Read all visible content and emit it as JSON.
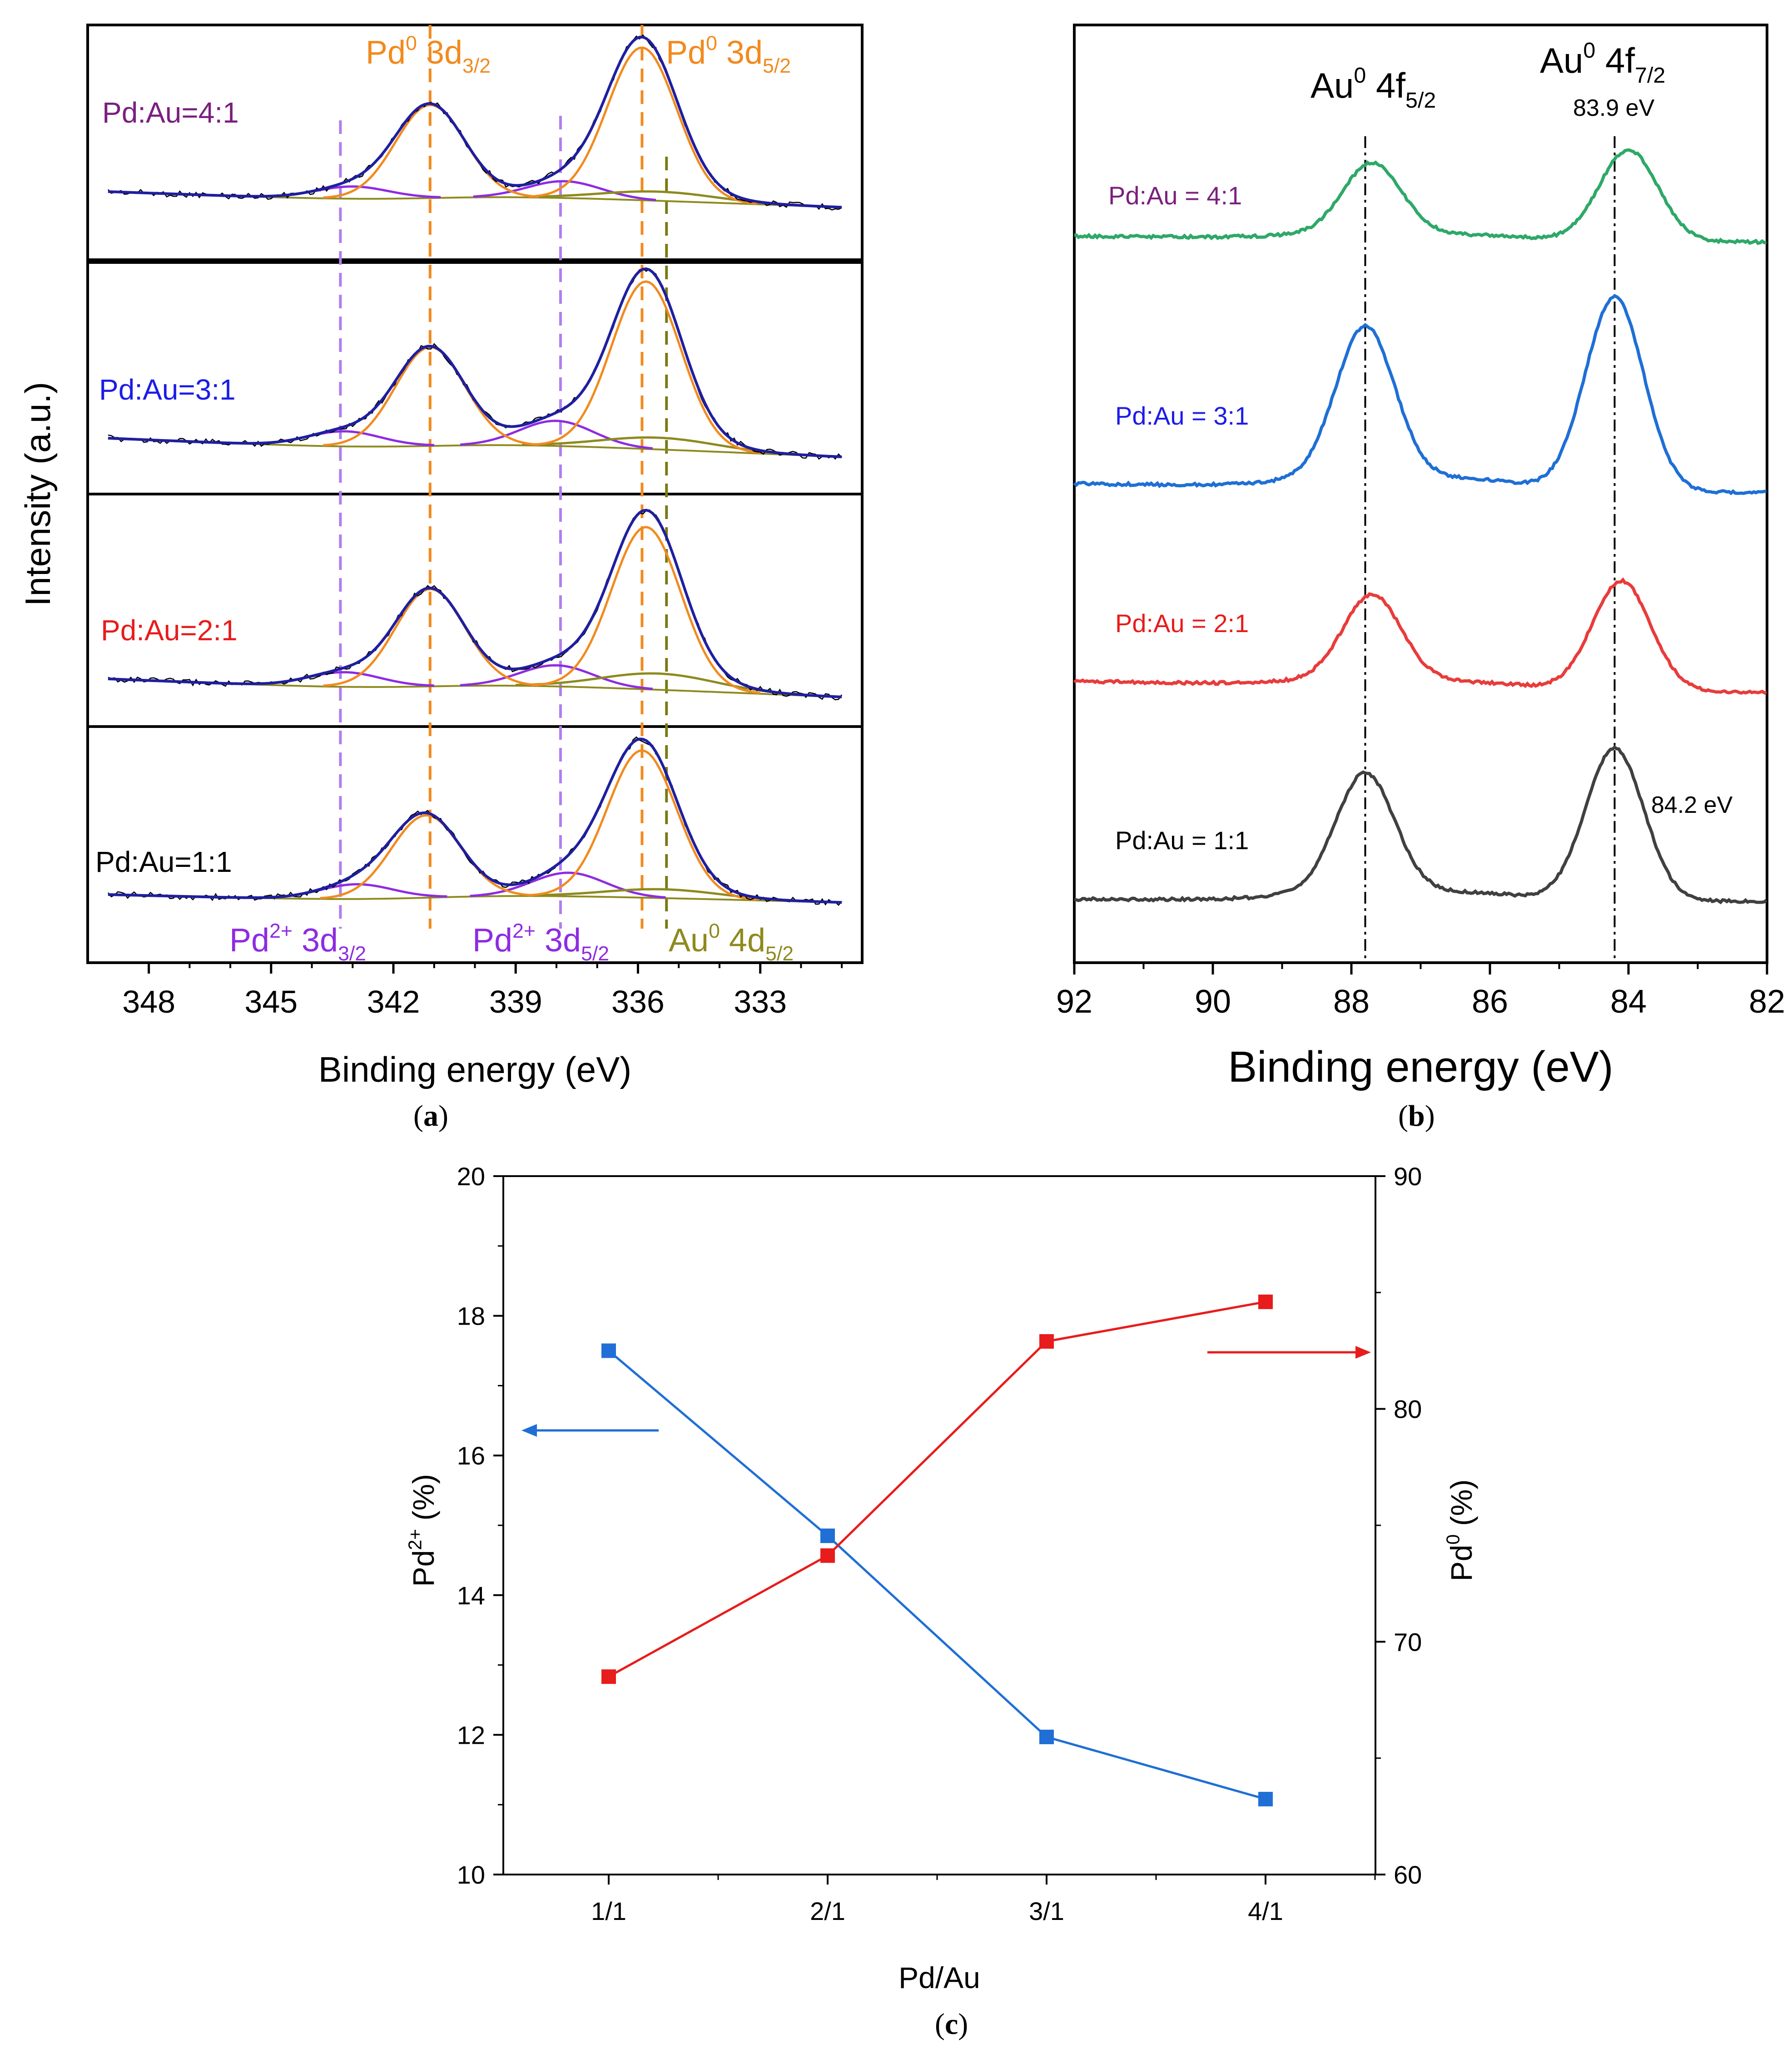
{
  "chart_data": [
    {
      "panel": "a",
      "type": "line",
      "caption_label": "a",
      "xlabel": "Binding energy (eV)",
      "ylabel": "Intensity (a.u.)",
      "xlim": [
        349.5,
        330.5
      ],
      "x_ticks": [
        348,
        345,
        342,
        339,
        336,
        333
      ],
      "x_tick_labels": [
        "348",
        "345",
        "342",
        "339",
        "336",
        "333"
      ],
      "colors": {
        "fit": "#1f1fa0",
        "pd0": "#f28a1e",
        "pd2": "#8e2be2",
        "au": "#8e8a1e",
        "raw": "#000000"
      },
      "reference_lines": [
        {
          "x": 343.3,
          "color": "#b07ef0",
          "label_sup": "2+",
          "label_base": "Pd",
          "label_rest": " 3d",
          "label_sub": "3/2"
        },
        {
          "x": 341.1,
          "color": "#f28a1e",
          "label_sup": "0",
          "label_base": "Pd",
          "label_rest": " 3d",
          "label_sub": "3/2"
        },
        {
          "x": 337.9,
          "color": "#b07ef0",
          "label_sup": "2+",
          "label_base": "Pd",
          "label_rest": " 3d",
          "label_sub": "5/2"
        },
        {
          "x": 335.9,
          "color": "#f28a1e",
          "label_sup": "0",
          "label_base": "Pd",
          "label_rest": " 3d",
          "label_sub": "5/2"
        },
        {
          "x": 335.3,
          "color": "#7a7a14",
          "label_sup": "0",
          "label_base": "Au",
          "label_rest": " 4d",
          "label_sub": "5/2"
        }
      ],
      "series": [
        {
          "name": "Pd:Au=4:1",
          "color": "#7b1f7e",
          "pd0_3d52": {
            "center": 335.9,
            "height": 1.0
          },
          "pd0_3d32": {
            "center": 341.1,
            "height": 0.61
          },
          "pd2_3d52": {
            "center": 337.8,
            "height": 0.11
          },
          "pd2_3d32": {
            "center": 343.0,
            "height": 0.08
          },
          "au_4d52": {
            "center": 335.5,
            "height": 0.06
          }
        },
        {
          "name": "Pd:Au=3:1",
          "color": "#1c1ce8",
          "pd0_3d52": {
            "center": 335.8,
            "height": 1.0
          },
          "pd0_3d32": {
            "center": 341.1,
            "height": 0.59
          },
          "pd2_3d52": {
            "center": 338.0,
            "height": 0.15
          },
          "pd2_3d32": {
            "center": 343.2,
            "height": 0.09
          },
          "au_4d52": {
            "center": 335.5,
            "height": 0.07
          }
        },
        {
          "name": "Pd:Au=2:1",
          "color": "#e81c1c",
          "pd0_3d52": {
            "center": 335.8,
            "height": 1.0
          },
          "pd0_3d32": {
            "center": 341.1,
            "height": 0.6
          },
          "pd2_3d52": {
            "center": 338.0,
            "height": 0.13
          },
          "pd2_3d32": {
            "center": 343.2,
            "height": 0.09
          },
          "au_4d52": {
            "center": 335.5,
            "height": 0.1
          }
        },
        {
          "name": "Pd:Au=1:1",
          "color": "#000000",
          "pd0_3d52": {
            "center": 335.9,
            "height": 1.0
          },
          "pd0_3d32": {
            "center": 341.2,
            "height": 0.56
          },
          "pd2_3d52": {
            "center": 337.7,
            "height": 0.16
          },
          "pd2_3d32": {
            "center": 342.9,
            "height": 0.1
          },
          "au_4d52": {
            "center": 335.4,
            "height": 0.06
          }
        }
      ]
    },
    {
      "panel": "b",
      "type": "line",
      "caption_label": "b",
      "xlabel": "Binding energy (eV)",
      "xlim": [
        92,
        82
      ],
      "x_ticks": [
        92,
        90,
        88,
        86,
        84,
        82
      ],
      "x_tick_labels": [
        "92",
        "90",
        "88",
        "86",
        "84",
        "82"
      ],
      "peak_labels": [
        {
          "base": "Au",
          "sup": "0",
          "rest": " 4f",
          "sub": "5/2"
        },
        {
          "base": "Au",
          "sup": "0",
          "rest": " 4f",
          "sub": "7/2"
        }
      ],
      "annotations": [
        "83.9 eV",
        "84.2 eV"
      ],
      "reference_lines": [
        {
          "x": 87.8
        },
        {
          "x": 84.2
        }
      ],
      "series": [
        {
          "name": "Pd:Au = 4:1",
          "color": "#2ea868",
          "label_color": "#7b1f7e",
          "peak1": 87.7,
          "peak2": 84.0,
          "amp": 1.0
        },
        {
          "name": "Pd:Au = 3:1",
          "color": "#1f6fd6",
          "label_color": "#1c1ce8",
          "peak1": 87.8,
          "peak2": 84.2,
          "amp": 1.45
        },
        {
          "name": "Pd:Au = 2:1",
          "color": "#e83c3c",
          "label_color": "#e81c1c",
          "peak1": 87.7,
          "peak2": 84.1,
          "amp": 1.1
        },
        {
          "name": "Pd:Au = 1:1",
          "color": "#404040",
          "label_color": "#000000",
          "peak1": 87.8,
          "peak2": 84.2,
          "amp": 1.28
        }
      ]
    },
    {
      "panel": "c",
      "type": "line",
      "caption_label": "c",
      "xlabel": "Pd/Au",
      "categories": [
        "1/1",
        "2/1",
        "3/1",
        "4/1"
      ],
      "ylabel_left": {
        "base": "Pd",
        "sup": "2+",
        "rest": " (%)"
      },
      "ylabel_right": {
        "base": "Pd",
        "sup": "0",
        "rest": " (%)"
      },
      "ylim_left": [
        10,
        20
      ],
      "yticks_left": [
        "10",
        "12",
        "14",
        "16",
        "18",
        "20"
      ],
      "ylim_right": [
        60,
        90
      ],
      "yticks_right": [
        "60",
        "70",
        "80",
        "90"
      ],
      "series": [
        {
          "name": "Pd2+",
          "axis": "left",
          "color": "#1f6fd6",
          "values": [
            17.5,
            14.85,
            11.97,
            11.08
          ]
        },
        {
          "name": "Pd0",
          "axis": "right",
          "color": "#e81c1c",
          "values": [
            68.5,
            73.7,
            82.9,
            84.6
          ]
        }
      ]
    }
  ]
}
